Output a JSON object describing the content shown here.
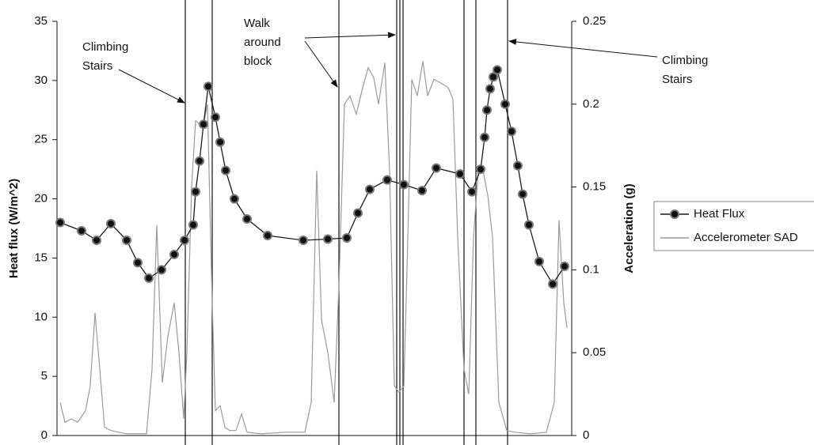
{
  "chart_data": {
    "type": "line",
    "y_label": "Heat flux (W/m^2)",
    "y2_label": "Acceleration (g)",
    "xlim": [
      0,
      130
    ],
    "ylim": [
      0,
      35
    ],
    "yticks": [
      0,
      5,
      10,
      15,
      20,
      25,
      30,
      35
    ],
    "y2lim": [
      0,
      0.25
    ],
    "y2ticks": [
      0,
      0.05,
      0.1,
      0.15,
      0.2,
      0.25
    ],
    "legend": "right",
    "annotations": [
      {
        "lines": [
          "Climbing",
          "Stairs"
        ]
      },
      {
        "lines": [
          "Walk",
          "around",
          "block"
        ]
      },
      {
        "lines": [
          "Climbing",
          "Stairs"
        ]
      }
    ],
    "series": [
      {
        "name": "Heat Flux",
        "color": "#1a1a1a",
        "markers": true,
        "x": [
          0.8,
          6.2,
          10,
          13.6,
          17.6,
          20.4,
          23.2,
          26.4,
          29.6,
          32.2,
          34.4,
          35,
          36,
          37,
          38.2,
          40,
          41.2,
          42.6,
          44.8,
          48,
          53.2,
          62.2,
          68.4,
          73.2,
          76,
          79,
          83.4,
          87.6,
          92.2,
          95.8,
          101.8,
          104.8,
          107,
          108,
          108.6,
          109.4,
          110.2,
          111.2,
          113.2,
          114.8,
          116.4,
          117.6,
          119.2,
          121.8,
          125.2,
          128.2
        ],
        "values": [
          18.0,
          17.3,
          16.5,
          17.9,
          16.5,
          14.6,
          13.3,
          14.0,
          15.3,
          16.5,
          17.8,
          20.6,
          23.2,
          26.3,
          29.5,
          26.9,
          24.8,
          22.4,
          20.0,
          18.3,
          16.9,
          16.5,
          16.6,
          16.7,
          18.8,
          20.8,
          21.6,
          21.2,
          20.7,
          22.6,
          22.1,
          20.6,
          22.5,
          25.2,
          27.5,
          29.3,
          30.3,
          30.9,
          28.0,
          25.7,
          22.8,
          20.4,
          17.8,
          14.7,
          12.8,
          14.3
        ]
      },
      {
        "name": "Accelerometer SAD",
        "color": "#9a9a9a",
        "markers": false,
        "axis": "y2",
        "x": [
          0.8,
          2,
          3.6,
          5.2,
          7.2,
          8.4,
          9.6,
          10.8,
          12,
          13.6,
          15.6,
          17.6,
          19.6,
          22.6,
          24,
          25.2,
          26.6,
          28,
          29.6,
          30.8,
          32,
          32.8,
          34,
          35,
          36,
          37.2,
          38,
          39.2,
          40,
          41.2,
          42.4,
          43.6,
          45.2,
          46.6,
          48,
          51.6,
          57.6,
          62.6,
          64.2,
          65.6,
          66.8,
          68.4,
          70,
          71.2,
          72.6,
          74,
          75.6,
          77.2,
          78.6,
          80,
          81.2,
          82.8,
          84,
          85.2,
          86.4,
          87.6,
          88.4,
          89.6,
          91,
          92.4,
          93.6,
          95.2,
          96.8,
          98.8,
          100,
          101.2,
          102.8,
          104,
          105.2,
          106.4,
          107.6,
          108.8,
          110,
          111.6,
          113.6,
          115.6,
          119.6,
          123.6,
          125.6,
          126.8,
          128,
          128.8
        ],
        "values": [
          0.02,
          0.008,
          0.01,
          0.008,
          0.015,
          0.03,
          0.074,
          0.04,
          0.005,
          0.003,
          0.002,
          0.001,
          0.001,
          0.001,
          0.04,
          0.127,
          0.032,
          0.06,
          0.08,
          0.05,
          0.01,
          0.05,
          0.15,
          0.19,
          0.188,
          0.19,
          0.2,
          0.08,
          0.015,
          0.018,
          0.005,
          0.003,
          0.003,
          0.013,
          0.002,
          0.001,
          0.002,
          0.002,
          0.02,
          0.16,
          0.07,
          0.05,
          0.02,
          0.09,
          0.2,
          0.205,
          0.194,
          0.21,
          0.222,
          0.216,
          0.2,
          0.225,
          0.16,
          0.03,
          0.026,
          0.03,
          0.1,
          0.215,
          0.205,
          0.226,
          0.205,
          0.215,
          0.213,
          0.21,
          0.203,
          0.12,
          0.04,
          0.025,
          0.12,
          0.16,
          0.16,
          0.145,
          0.12,
          0.02,
          0.003,
          0.002,
          0.001,
          0.002,
          0.02,
          0.13,
          0.08,
          0.065
        ]
      }
    ]
  }
}
